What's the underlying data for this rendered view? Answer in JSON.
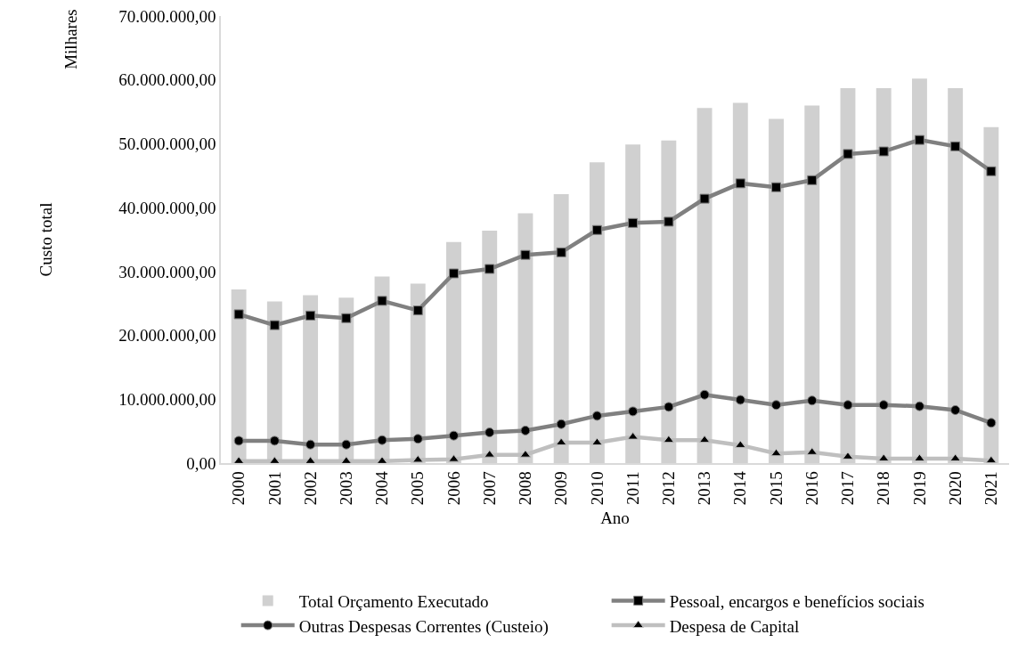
{
  "chart_data": {
    "type": "bar",
    "xlabel": "Ano",
    "ylabel": "Custo total",
    "annotations": [
      "Milhares"
    ],
    "categories": [
      "2000",
      "2001",
      "2002",
      "2003",
      "2004",
      "2005",
      "2006",
      "2007",
      "2008",
      "2009",
      "2010",
      "2011",
      "2012",
      "2013",
      "2014",
      "2015",
      "2016",
      "2017",
      "2018",
      "2019",
      "2020",
      "2021"
    ],
    "series": [
      {
        "name": "Total Orçamento Executado",
        "color": "#d0d0d0",
        "values": [
          27200000,
          25300000,
          26300000,
          25900000,
          29200000,
          28100000,
          34600000,
          36400000,
          39100000,
          42100000,
          47100000,
          49900000,
          50500000,
          55600000,
          56400000,
          53900000,
          56000000,
          58700000,
          58700000,
          60200000,
          58700000,
          52600000
        ]
      },
      {
        "name": "Pessoal, encargos e benefícios sociais",
        "type": "line",
        "marker": "square",
        "color": "#808080",
        "values": [
          23300000,
          21600000,
          23100000,
          22700000,
          25400000,
          23900000,
          29700000,
          30400000,
          32600000,
          33000000,
          36500000,
          37600000,
          37800000,
          41400000,
          43800000,
          43200000,
          44300000,
          48400000,
          48800000,
          50600000,
          49600000,
          45700000
        ]
      },
      {
        "name": "Outras Despesas Correntes (Custeio)",
        "type": "line",
        "marker": "circle",
        "color": "#808080",
        "values": [
          3500000,
          3500000,
          2900000,
          2900000,
          3600000,
          3800000,
          4300000,
          4800000,
          5100000,
          6100000,
          7400000,
          8100000,
          8800000,
          10700000,
          9900000,
          9100000,
          9800000,
          9100000,
          9100000,
          8900000,
          8300000,
          6300000
        ]
      },
      {
        "name": "Despesa de Capital",
        "type": "line",
        "marker": "triangle",
        "color": "#bfbfbf",
        "values": [
          300000,
          300000,
          300000,
          300000,
          300000,
          500000,
          600000,
          1300000,
          1300000,
          3200000,
          3200000,
          4100000,
          3600000,
          3600000,
          2800000,
          1500000,
          1700000,
          1000000,
          700000,
          700000,
          700000,
          400000
        ]
      }
    ],
    "ylim": [
      0,
      70000000
    ],
    "yticks": [
      {
        "value": 0,
        "label": "0,00"
      },
      {
        "value": 10000000,
        "label": "10.000.000,00"
      },
      {
        "value": 20000000,
        "label": "20.000.000,00"
      },
      {
        "value": 30000000,
        "label": "30.000.000,00"
      },
      {
        "value": 40000000,
        "label": "40.000.000,00"
      },
      {
        "value": 50000000,
        "label": "50.000.000,00"
      },
      {
        "value": 60000000,
        "label": "60.000.000,00"
      },
      {
        "value": 70000000,
        "label": "70.000.000,00"
      }
    ],
    "grid": false,
    "legend": "bottom"
  }
}
